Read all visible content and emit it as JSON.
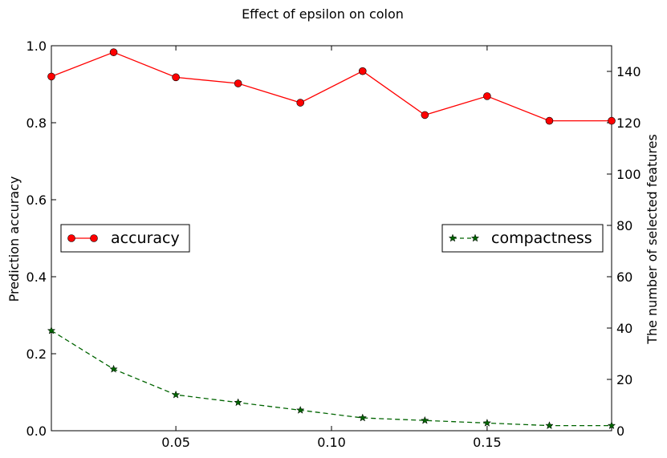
{
  "chart_data": {
    "type": "line",
    "title": "Effect of epsilon on colon",
    "xlabel": "",
    "ylabel": "Prediction accuracy",
    "y2label": "The number of selected features",
    "xlim": [
      0.01,
      0.19
    ],
    "ylim": [
      0.0,
      1.0
    ],
    "y2lim": [
      0,
      150
    ],
    "xticks": [
      "0.05",
      "0.10",
      "0.15"
    ],
    "xtick_values": [
      0.05,
      0.1,
      0.15
    ],
    "yticks": [
      "0.0",
      "0.2",
      "0.4",
      "0.6",
      "0.8",
      "1.0"
    ],
    "ytick_values": [
      0.0,
      0.2,
      0.4,
      0.6,
      0.8,
      1.0
    ],
    "y2ticks": [
      "0",
      "20",
      "40",
      "60",
      "80",
      "100",
      "120",
      "140"
    ],
    "y2tick_values": [
      0,
      20,
      40,
      60,
      80,
      100,
      120,
      140
    ],
    "x": [
      0.01,
      0.03,
      0.05,
      0.07,
      0.09,
      0.11,
      0.13,
      0.15,
      0.17,
      0.19
    ],
    "series": [
      {
        "name": "accuracy",
        "axis": "left",
        "color": "#ff0000",
        "marker": "circle",
        "linestyle": "solid",
        "values": [
          0.92,
          0.983,
          0.918,
          0.902,
          0.852,
          0.934,
          0.82,
          0.869,
          0.805,
          0.805
        ]
      },
      {
        "name": "compactness",
        "axis": "right",
        "color": "#006400",
        "marker": "star",
        "linestyle": "dashed",
        "values": [
          39,
          24,
          14,
          11,
          8,
          5,
          4,
          3,
          2,
          2
        ]
      }
    ],
    "legends": [
      {
        "series": "accuracy",
        "placement": "center-left"
      },
      {
        "series": "compactness",
        "placement": "center-right"
      }
    ],
    "grid": false
  }
}
